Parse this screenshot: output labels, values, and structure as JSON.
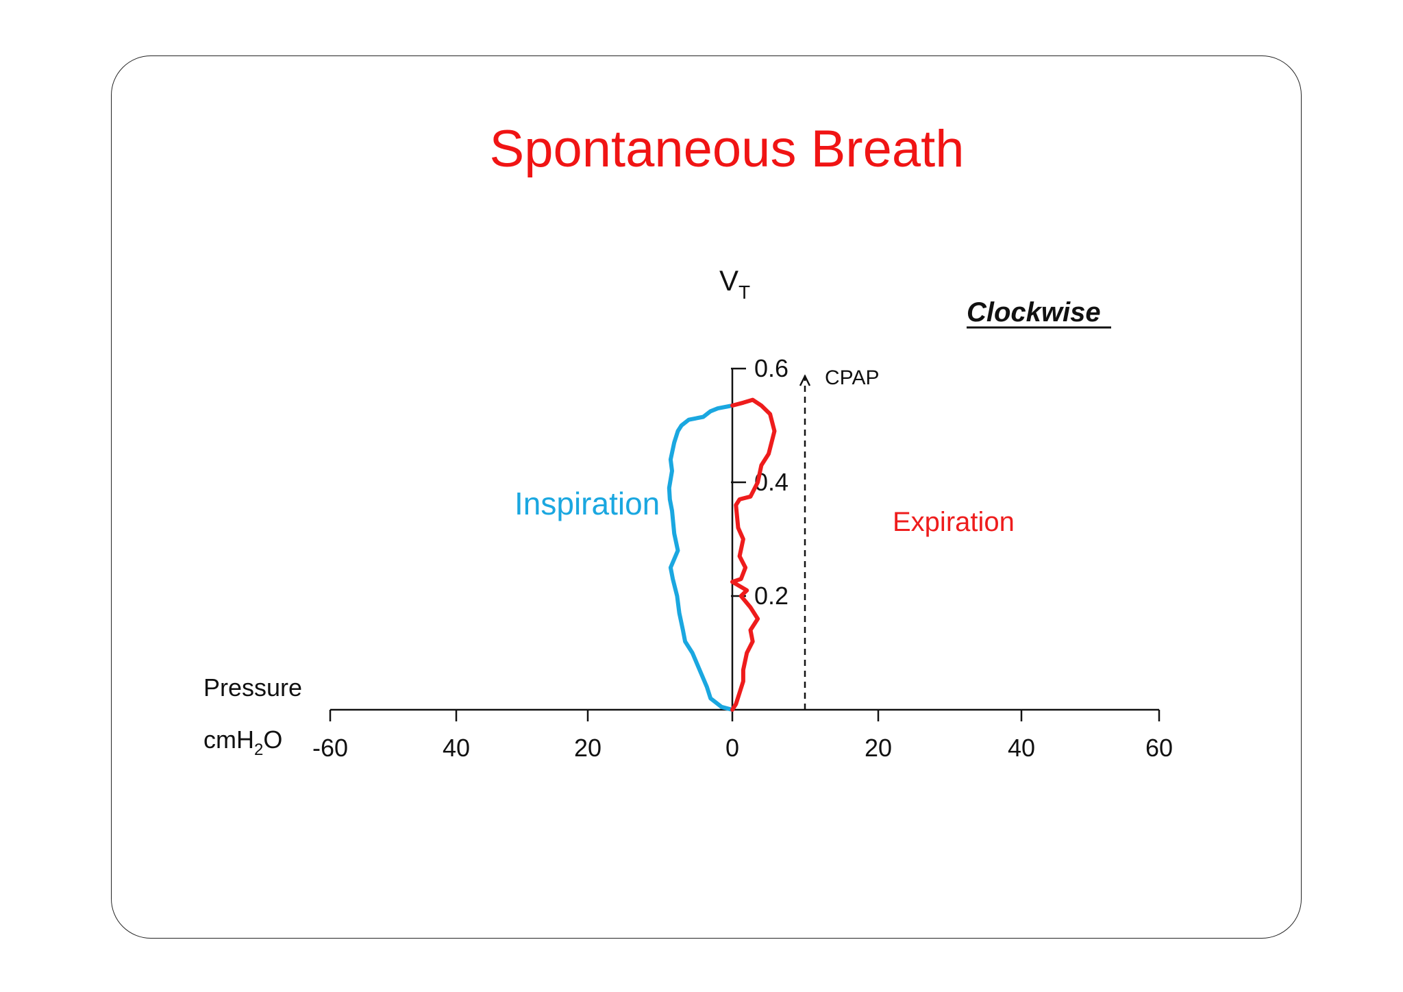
{
  "title": "Spontaneous Breath",
  "colors": {
    "title": "#f01414",
    "inspiration": "#1aa7e0",
    "expiration": "#ee1c1c",
    "axis": "#111111",
    "frame": "#222222"
  },
  "chart_data": {
    "type": "line",
    "title": "Spontaneous Breath",
    "annotation_direction": "Clockwise",
    "ylabel_main": "V",
    "ylabel_sub": "T",
    "xlabel_top": "Pressure",
    "xunit_prefix": "cmH",
    "xunit_sub": "2",
    "xunit_suffix": "O",
    "x_tick_labels": [
      "-60",
      "40",
      "20",
      "0",
      "20",
      "40",
      "60"
    ],
    "y_tick_labels": [
      "0.2",
      "0.4",
      "0.6"
    ],
    "xlim": [
      -60,
      60
    ],
    "ylim": [
      0,
      0.6
    ],
    "grid": false,
    "reference_line": {
      "label": "CPAP",
      "x": 10
    },
    "series": [
      {
        "name": "Inspiration",
        "points": [
          [
            0,
            0
          ],
          [
            -1.5,
            0.005
          ],
          [
            -3,
            0.02
          ],
          [
            -3.5,
            0.04
          ],
          [
            -4.5,
            0.07
          ],
          [
            -5.5,
            0.1
          ],
          [
            -6.5,
            0.12
          ],
          [
            -6.8,
            0.14
          ],
          [
            -7.3,
            0.17
          ],
          [
            -7.6,
            0.2
          ],
          [
            -8.2,
            0.23
          ],
          [
            -8.5,
            0.25
          ],
          [
            -7.5,
            0.28
          ],
          [
            -8,
            0.31
          ],
          [
            -8.3,
            0.35
          ],
          [
            -8.6,
            0.37
          ],
          [
            -8.7,
            0.39
          ],
          [
            -8.3,
            0.42
          ],
          [
            -8.5,
            0.44
          ],
          [
            -8,
            0.47
          ],
          [
            -7.5,
            0.49
          ],
          [
            -7,
            0.5
          ],
          [
            -6,
            0.51
          ],
          [
            -4,
            0.515
          ],
          [
            -3,
            0.525
          ],
          [
            -2,
            0.53
          ],
          [
            0,
            0.535
          ]
        ]
      },
      {
        "name": "Expiration",
        "points": [
          [
            0,
            0.535
          ],
          [
            1.5,
            0.54
          ],
          [
            2.8,
            0.545
          ],
          [
            4,
            0.535
          ],
          [
            5.2,
            0.52
          ],
          [
            5.8,
            0.49
          ],
          [
            5,
            0.45
          ],
          [
            4,
            0.43
          ],
          [
            3.5,
            0.4
          ],
          [
            2.5,
            0.375
          ],
          [
            1,
            0.37
          ],
          [
            0.5,
            0.36
          ],
          [
            0.8,
            0.32
          ],
          [
            1.5,
            0.3
          ],
          [
            1,
            0.27
          ],
          [
            1.8,
            0.25
          ],
          [
            1.2,
            0.23
          ],
          [
            0,
            0.225
          ],
          [
            2,
            0.21
          ],
          [
            1.2,
            0.2
          ],
          [
            2.5,
            0.18
          ],
          [
            3.5,
            0.16
          ],
          [
            2.5,
            0.14
          ],
          [
            2.8,
            0.12
          ],
          [
            2,
            0.1
          ],
          [
            1.5,
            0.07
          ],
          [
            1.5,
            0.05
          ],
          [
            1,
            0.03
          ],
          [
            0.5,
            0.01
          ],
          [
            0,
            0
          ]
        ]
      }
    ]
  }
}
